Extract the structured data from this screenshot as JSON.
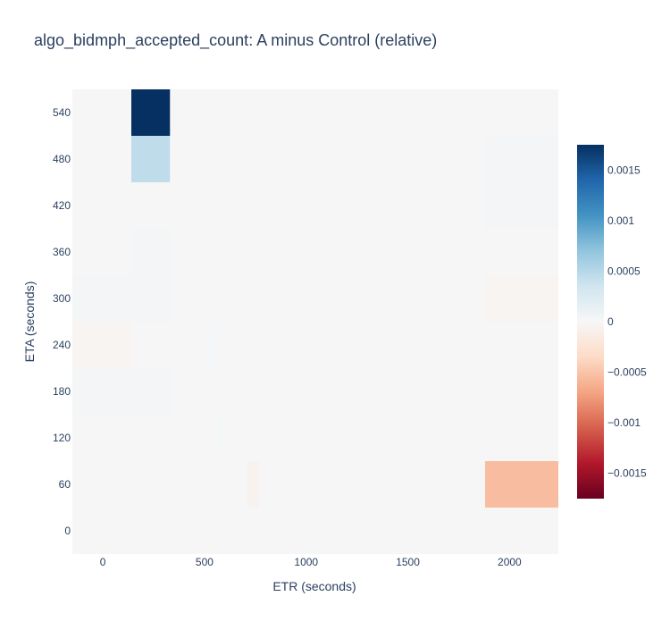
{
  "chart_data": {
    "type": "heatmap",
    "title": "algo_bidmph_accepted_count: A minus Control (relative)",
    "xlabel": "ETR (seconds)",
    "ylabel": "ETA (seconds)",
    "x_range": [
      -150,
      2240
    ],
    "y_range": [
      -30,
      570
    ],
    "x_ticks": [
      0,
      500,
      1000,
      1500,
      2000
    ],
    "x_tick_labels": [
      "0",
      "500",
      "1000",
      "1500",
      "2000"
    ],
    "y_ticks": [
      0,
      60,
      120,
      180,
      240,
      300,
      360,
      420,
      480,
      540
    ],
    "y_tick_labels": [
      "0",
      "60",
      "120",
      "180",
      "240",
      "300",
      "360",
      "420",
      "480",
      "540"
    ],
    "colorbar": {
      "min": -0.00175,
      "max": 0.00175,
      "ticks": [
        0.0015,
        0.001,
        0.0005,
        0,
        -0.0005,
        -0.001,
        -0.0015
      ],
      "tick_labels": [
        "0.0015",
        "0.001",
        "0.0005",
        "0",
        "−0.0005",
        "−0.001",
        "−0.0015"
      ]
    },
    "colorscale": [
      [
        0.0,
        "#67001f"
      ],
      [
        0.1,
        "#b2182b"
      ],
      [
        0.2,
        "#d6604d"
      ],
      [
        0.3,
        "#f4a582"
      ],
      [
        0.4,
        "#fddbc7"
      ],
      [
        0.5,
        "#f7f7f7"
      ],
      [
        0.6,
        "#d1e5f0"
      ],
      [
        0.7,
        "#92c5de"
      ],
      [
        0.8,
        "#4393c3"
      ],
      [
        0.9,
        "#2166ac"
      ],
      [
        1.0,
        "#053061"
      ]
    ],
    "background_color": "#f6f6f6",
    "cells": [
      {
        "x0": -150,
        "x1": 140,
        "y0": 270,
        "y1": 330,
        "value": 3e-05
      },
      {
        "x0": -150,
        "x1": 140,
        "y0": 210,
        "y1": 270,
        "value": -4e-05
      },
      {
        "x0": -150,
        "x1": 140,
        "y0": 150,
        "y1": 210,
        "value": 3e-05
      },
      {
        "x0": 140,
        "x1": 330,
        "y0": 510,
        "y1": 570,
        "value": 0.00175
      },
      {
        "x0": 140,
        "x1": 330,
        "y0": 450,
        "y1": 510,
        "value": 0.00045
      },
      {
        "x0": 140,
        "x1": 330,
        "y0": 330,
        "y1": 390,
        "value": 3e-05
      },
      {
        "x0": 140,
        "x1": 330,
        "y0": 270,
        "y1": 330,
        "value": 4e-05
      },
      {
        "x0": 140,
        "x1": 330,
        "y0": 150,
        "y1": 210,
        "value": 3e-05
      },
      {
        "x0": 510,
        "x1": 560,
        "y0": 210,
        "y1": 270,
        "value": 2e-05
      },
      {
        "x0": 560,
        "x1": 610,
        "y0": 90,
        "y1": 150,
        "value": 2e-05
      },
      {
        "x0": 710,
        "x1": 765,
        "y0": 30,
        "y1": 90,
        "value": -6e-05
      },
      {
        "x0": 1880,
        "x1": 2240,
        "y0": 450,
        "y1": 510,
        "value": 3e-05
      },
      {
        "x0": 1880,
        "x1": 2240,
        "y0": 390,
        "y1": 450,
        "value": 3e-05
      },
      {
        "x0": 1880,
        "x1": 2240,
        "y0": 270,
        "y1": 330,
        "value": -4e-05
      },
      {
        "x0": 1880,
        "x1": 2240,
        "y0": 30,
        "y1": 90,
        "value": -0.00055
      }
    ]
  }
}
